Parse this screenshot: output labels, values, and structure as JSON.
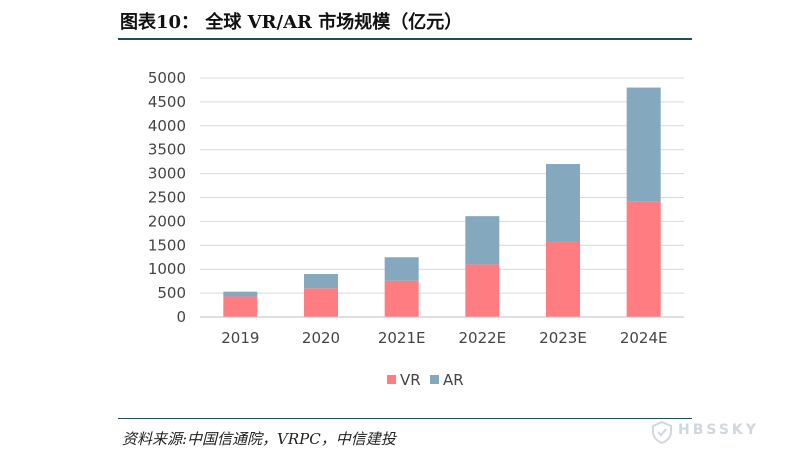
{
  "header": {
    "title": "图表10： 全球 VR/AR 市场规模（亿元）"
  },
  "footer": {
    "source": "资料来源:中国信通院，VRPC，中信建投",
    "watermark": "HBSSKY"
  },
  "chart_data": {
    "type": "bar",
    "stacked": true,
    "categories": [
      "2019",
      "2020",
      "2021E",
      "2022E",
      "2023E",
      "2024E"
    ],
    "series": [
      {
        "name": "VR",
        "color": "#ff7c80",
        "values": [
          430,
          600,
          760,
          1100,
          1570,
          2410
        ]
      },
      {
        "name": "AR",
        "color": "#84a9bf",
        "values": [
          100,
          300,
          490,
          1010,
          1630,
          2390
        ]
      }
    ],
    "ylim": [
      0,
      5000
    ],
    "yticks": [
      0,
      500,
      1000,
      1500,
      2000,
      2500,
      3000,
      3500,
      4000,
      4500,
      5000
    ],
    "grid": true,
    "legend": "bottom-center",
    "xlabel": "",
    "ylabel": ""
  }
}
